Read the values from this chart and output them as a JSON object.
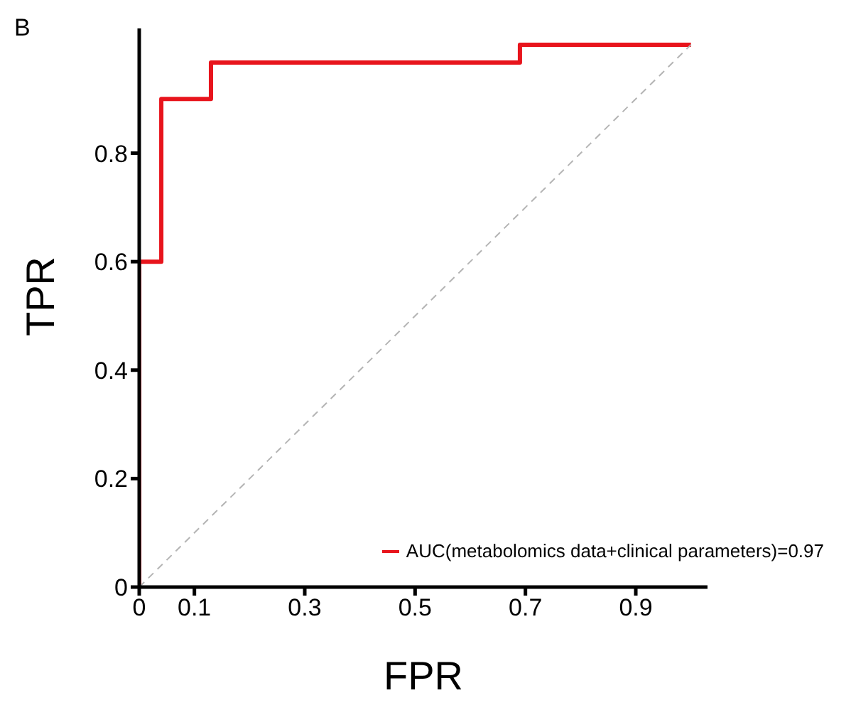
{
  "chart_data": {
    "type": "line",
    "title": "B",
    "xlabel": "FPR",
    "ylabel": "TPR",
    "xlim": [
      0,
      1.03
    ],
    "ylim": [
      0,
      1.03
    ],
    "xticks": [
      0,
      0.1,
      0.3,
      0.5,
      0.7,
      0.9
    ],
    "yticks": [
      0,
      0.2,
      0.4,
      0.6,
      0.8
    ],
    "grid": false,
    "legend": "bottom right",
    "marker": "none",
    "series": [
      {
        "name": "AUC(metabolomics data+clinical parameters)=0.97",
        "type": "step",
        "color": "#e8141c",
        "x": [
          0,
          0,
          0.04,
          0.13,
          0.69,
          1
        ],
        "values": [
          0,
          0.6,
          0.9,
          0.967,
          1,
          1
        ]
      },
      {
        "type": "line",
        "color": "#b4b4b4",
        "line_style": "dashed",
        "x": [
          0,
          1
        ],
        "values": [
          0,
          1
        ]
      }
    ]
  }
}
